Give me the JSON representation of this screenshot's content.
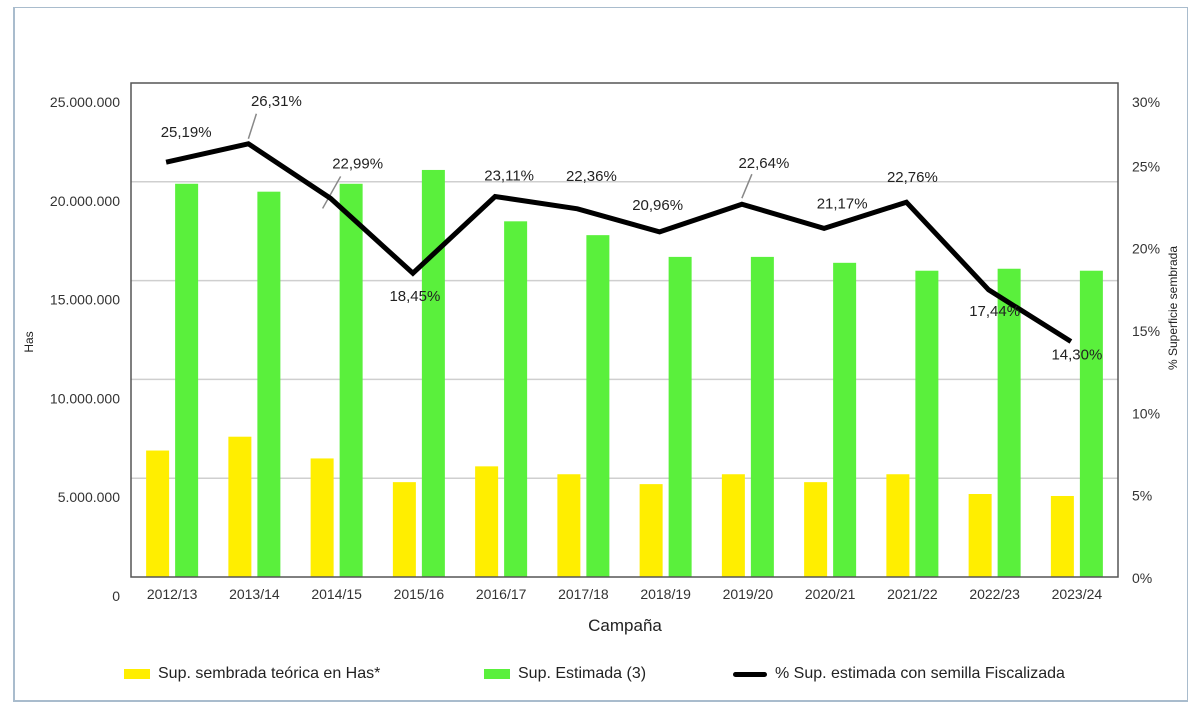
{
  "chart_data": {
    "type": "bar",
    "title": "",
    "xlabel": "Campaña",
    "ylabel": "Has",
    "y2label": "% Superficie sembrada",
    "ylim": [
      0,
      25000000
    ],
    "y2lim": [
      0,
      30
    ],
    "grid": true,
    "legend_position": "bottom",
    "categories": [
      "2012/13",
      "2013/14",
      "2014/15",
      "2015/16",
      "2016/17",
      "2017/18",
      "2018/19",
      "2019/20",
      "2020/21",
      "2021/22",
      "2022/23",
      "2023/24"
    ],
    "y_ticks": [
      "0",
      "5.000.000",
      "10.000.000",
      "15.000.000",
      "20.000.000",
      "25.000.000"
    ],
    "y2_ticks": [
      "0%",
      "5%",
      "10%",
      "15%",
      "20%",
      "25%",
      "30%"
    ],
    "series": [
      {
        "name": "Sup. sembrada teórica en Has*",
        "type": "bar",
        "axis": "left",
        "color": "#FFEE00",
        "values": [
          6400000,
          7100000,
          6000000,
          4800000,
          5600000,
          5200000,
          4700000,
          5200000,
          4800000,
          5200000,
          4200000,
          4100000
        ]
      },
      {
        "name": "Sup. Estimada (3)",
        "type": "bar",
        "axis": "left",
        "color": "#5AF03C",
        "values": [
          19900000,
          19500000,
          19900000,
          20600000,
          18000000,
          17300000,
          16200000,
          16200000,
          15900000,
          15500000,
          15600000,
          15500000
        ]
      },
      {
        "name": "% Sup. estimada con semilla Fiscalizada",
        "type": "line",
        "axis": "right",
        "color": "#000000",
        "values": [
          25.19,
          26.31,
          22.99,
          18.45,
          23.11,
          22.36,
          20.96,
          22.64,
          21.17,
          22.76,
          17.44,
          14.3
        ],
        "labels": [
          "25,19%",
          "26,31%",
          "22,99%",
          "18,45%",
          "23,11%",
          "22,36%",
          "20,96%",
          "22,64%",
          "21,17%",
          "22,76%",
          "17,44%",
          "14,30%"
        ]
      }
    ]
  }
}
